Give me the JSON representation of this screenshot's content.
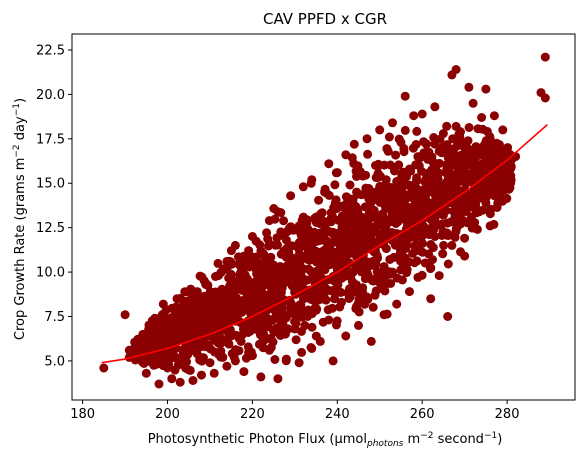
{
  "chart_data": {
    "type": "scatter",
    "title": "CAV PPFD x CGR",
    "xlabel": {
      "prefix": "Photosynthetic Photon Flux (µmol",
      "sub": "photons",
      "mid": " m",
      "sup1": "−2",
      "after": " second",
      "sup2": "−1",
      "suffix": ")"
    },
    "ylabel": {
      "prefix": "Crop Growth Rate (grams m",
      "sup1": "−2",
      "mid": " day",
      "sup2": "−1",
      "suffix": ")"
    },
    "xlim": [
      177.5,
      296
    ],
    "ylim": [
      2.8,
      23.4
    ],
    "xticks": [
      180,
      200,
      220,
      240,
      260,
      280
    ],
    "xtick_labels": [
      "180",
      "200",
      "220",
      "240",
      "260",
      "280"
    ],
    "yticks": [
      5.0,
      7.5,
      10.0,
      12.5,
      15.0,
      17.5,
      20.0,
      22.5
    ],
    "ytick_labels": [
      "5.0",
      "7.5",
      "10.0",
      "12.5",
      "15.0",
      "17.5",
      "20.0",
      "22.5"
    ],
    "grid": false,
    "series": [
      {
        "kind": "points",
        "color": "#8b0000",
        "points": [
          [
            185,
            4.6
          ],
          [
            190,
            7.6
          ],
          [
            191,
            5.6
          ],
          [
            191,
            5.2
          ],
          [
            194,
            5.0
          ],
          [
            195,
            4.3
          ],
          [
            196,
            6.3
          ],
          [
            197,
            7.4
          ],
          [
            198,
            3.7
          ],
          [
            198,
            5.5
          ],
          [
            199,
            8.2
          ],
          [
            199,
            6.8
          ],
          [
            200,
            4.6
          ],
          [
            200,
            7.3
          ],
          [
            201,
            4.0
          ],
          [
            201,
            5.9
          ],
          [
            202,
            6.5
          ],
          [
            203,
            3.8
          ],
          [
            203,
            8.0
          ],
          [
            204,
            5.1
          ],
          [
            204,
            6.9
          ],
          [
            205,
            4.5
          ],
          [
            205,
            7.8
          ],
          [
            206,
            3.9
          ],
          [
            206,
            6.1
          ],
          [
            207,
            8.9
          ],
          [
            207,
            5.4
          ],
          [
            208,
            4.2
          ],
          [
            208,
            7.1
          ],
          [
            209,
            9.3
          ],
          [
            209,
            5.8
          ],
          [
            210,
            4.9
          ],
          [
            210,
            6.7
          ],
          [
            211,
            8.4
          ],
          [
            211,
            4.3
          ],
          [
            212,
            9.8
          ],
          [
            212,
            6.0
          ],
          [
            213,
            5.2
          ],
          [
            213,
            7.6
          ],
          [
            214,
            10.6
          ],
          [
            214,
            4.7
          ],
          [
            215,
            8.8
          ],
          [
            215,
            6.4
          ],
          [
            216,
            11.5
          ],
          [
            216,
            5.0
          ],
          [
            217,
            9.6
          ],
          [
            217,
            7.2
          ],
          [
            218,
            4.4
          ],
          [
            218,
            10.9
          ],
          [
            219,
            6.6
          ],
          [
            219,
            8.3
          ],
          [
            220,
            12.0
          ],
          [
            220,
            5.3
          ],
          [
            221,
            9.9
          ],
          [
            221,
            7.0
          ],
          [
            222,
            4.1
          ],
          [
            222,
            11.2
          ],
          [
            223,
            8.6
          ],
          [
            223,
            6.2
          ],
          [
            224,
            12.9
          ],
          [
            224,
            5.6
          ],
          [
            225,
            10.4
          ],
          [
            225,
            7.9
          ],
          [
            226,
            4.0
          ],
          [
            226,
            13.4
          ],
          [
            227,
            9.1
          ],
          [
            227,
            6.5
          ],
          [
            228,
            11.8
          ],
          [
            228,
            5.1
          ],
          [
            229,
            14.3
          ],
          [
            229,
            8.0
          ],
          [
            230,
            10.7
          ],
          [
            230,
            6.8
          ],
          [
            231,
            12.6
          ],
          [
            231,
            4.9
          ],
          [
            232,
            14.8
          ],
          [
            232,
            9.4
          ],
          [
            233,
            7.5
          ],
          [
            233,
            11.5
          ],
          [
            234,
            15.2
          ],
          [
            234,
            5.7
          ],
          [
            235,
            13.1
          ],
          [
            235,
            8.7
          ],
          [
            236,
            10.2
          ],
          [
            236,
            6.1
          ],
          [
            237,
            14.5
          ],
          [
            237,
            9.0
          ],
          [
            238,
            16.1
          ],
          [
            238,
            7.3
          ],
          [
            239,
            12.2
          ],
          [
            239,
            5.0
          ],
          [
            240,
            15.6
          ],
          [
            240,
            10.1
          ],
          [
            241,
            8.3
          ],
          [
            241,
            13.7
          ],
          [
            242,
            16.6
          ],
          [
            242,
            6.4
          ],
          [
            243,
            11.4
          ],
          [
            243,
            14.9
          ],
          [
            244,
            9.2
          ],
          [
            244,
            17.2
          ],
          [
            245,
            7.0
          ],
          [
            245,
            12.8
          ],
          [
            246,
            15.4
          ],
          [
            246,
            10.6
          ],
          [
            247,
            17.5
          ],
          [
            247,
            8.6
          ],
          [
            248,
            13.5
          ],
          [
            248,
            6.1
          ],
          [
            249,
            16.0
          ],
          [
            249,
            11.2
          ],
          [
            250,
            18.0
          ],
          [
            250,
            9.4
          ],
          [
            251,
            14.2
          ],
          [
            251,
            7.6
          ],
          [
            252,
            16.8
          ],
          [
            252,
            12.1
          ],
          [
            253,
            18.4
          ],
          [
            253,
            10.0
          ],
          [
            254,
            15.1
          ],
          [
            254,
            8.2
          ],
          [
            255,
            17.3
          ],
          [
            255,
            13.0
          ],
          [
            256,
            19.9
          ],
          [
            256,
            10.8
          ],
          [
            257,
            15.8
          ],
          [
            257,
            8.9
          ],
          [
            258,
            18.8
          ],
          [
            258,
            12.4
          ],
          [
            259,
            16.5
          ],
          [
            259,
            9.7
          ],
          [
            260,
            18.9
          ],
          [
            260,
            13.6
          ],
          [
            261,
            17.2
          ],
          [
            261,
            10.5
          ],
          [
            262,
            15.0
          ],
          [
            262,
            8.5
          ],
          [
            263,
            19.3
          ],
          [
            263,
            12.0
          ],
          [
            264,
            16.8
          ],
          [
            264,
            9.8
          ],
          [
            265,
            17.8
          ],
          [
            265,
            13.2
          ],
          [
            266,
            7.5
          ],
          [
            266,
            15.5
          ],
          [
            267,
            21.1
          ],
          [
            267,
            11.5
          ],
          [
            268,
            21.4
          ],
          [
            268,
            18.2
          ],
          [
            269,
            15.9
          ],
          [
            269,
            12.7
          ],
          [
            270,
            17.0
          ],
          [
            270,
            10.9
          ],
          [
            271,
            20.4
          ],
          [
            271,
            14.1
          ],
          [
            272,
            19.5
          ],
          [
            272,
            16.4
          ],
          [
            273,
            12.4
          ],
          [
            274,
            18.7
          ],
          [
            274,
            15.2
          ],
          [
            275,
            20.3
          ],
          [
            275,
            13.9
          ],
          [
            276,
            16.7
          ],
          [
            276,
            12.6
          ],
          [
            277,
            18.8
          ],
          [
            278,
            16.0
          ],
          [
            279,
            18.0
          ],
          [
            281,
            16.3
          ],
          [
            282,
            16.5
          ],
          [
            288,
            20.1
          ],
          [
            289,
            22.1
          ],
          [
            289,
            19.8
          ]
        ]
      },
      {
        "kind": "fit-line",
        "color": "#ff0000",
        "x": [
          184.5,
          190,
          200,
          210,
          220,
          230,
          240,
          250,
          260,
          270,
          280,
          289.5
        ],
        "y": [
          4.9,
          5.1,
          5.7,
          6.5,
          7.5,
          8.7,
          10.0,
          11.5,
          12.9,
          14.5,
          16.3,
          18.3
        ]
      }
    ]
  }
}
